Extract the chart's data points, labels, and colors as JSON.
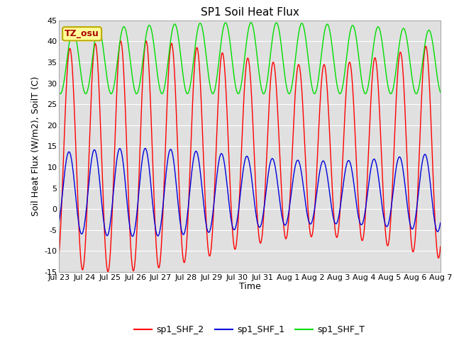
{
  "title": "SP1 Soil Heat Flux",
  "ylabel": "Soil Heat Flux (W/m2), SoilT (C)",
  "xlabel": "Time",
  "ylim": [
    -15,
    45
  ],
  "yticks": [
    -15,
    -10,
    -5,
    0,
    5,
    10,
    15,
    20,
    25,
    30,
    35,
    40,
    45
  ],
  "xtick_labels": [
    "Jul 23",
    "Jul 24",
    "Jul 25",
    "Jul 26",
    "Jul 27",
    "Jul 28",
    "Jul 29",
    "Jul 30",
    "Jul 31",
    "Aug 1",
    "Aug 2",
    "Aug 3",
    "Aug 4",
    "Aug 5",
    "Aug 6",
    "Aug 7"
  ],
  "bg_color": "#e0e0e0",
  "fig_color": "#ffffff",
  "legend_entries": [
    "sp1_SHF_2",
    "sp1_SHF_1",
    "sp1_SHF_T"
  ],
  "legend_colors": [
    "#ff0000",
    "#0000dd",
    "#00dd00"
  ],
  "annotation_text": "TZ_osu",
  "annotation_fg": "#aa0000",
  "annotation_bg": "#ffff99",
  "annotation_border": "#bbaa00",
  "grid_color": "#ffffff",
  "tick_fontsize": 8,
  "label_fontsize": 9,
  "title_fontsize": 11
}
